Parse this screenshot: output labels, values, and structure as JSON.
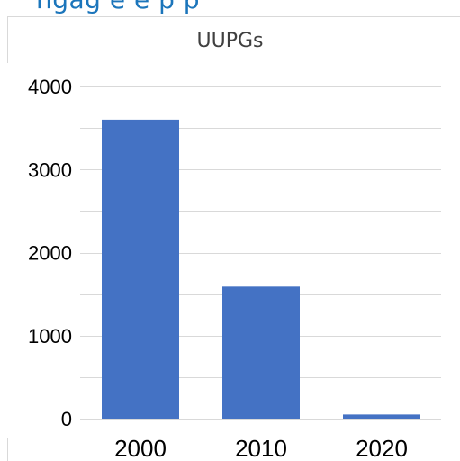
{
  "header_strip_text": "ngag    e e  p  p",
  "chart_data": {
    "type": "bar",
    "title": "UUPGs",
    "categories": [
      "2000",
      "2010",
      "2020"
    ],
    "values": [
      3600,
      1590,
      50
    ],
    "ylim": [
      0,
      4000
    ],
    "yticks": [
      0,
      1000,
      2000,
      3000,
      4000
    ],
    "grid": true,
    "legend": "none",
    "bar_color": "#4472c4",
    "grid_color": "#d9d9d9",
    "xlabel": "",
    "ylabel": ""
  }
}
